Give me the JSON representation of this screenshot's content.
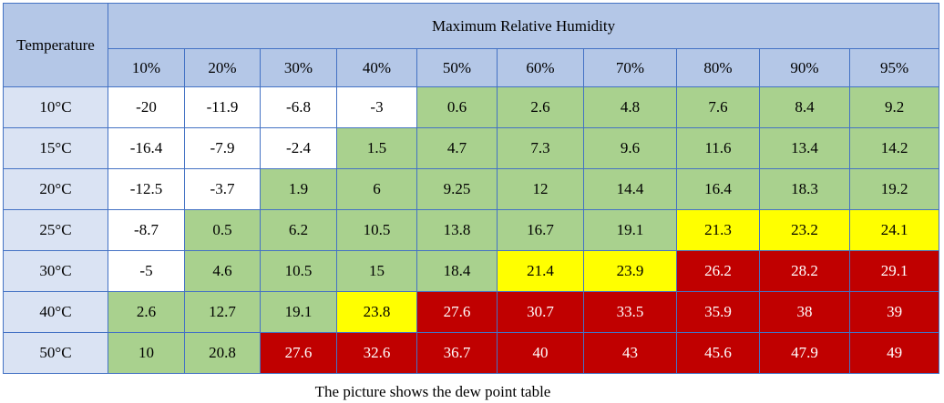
{
  "table": {
    "corner": "Temperature",
    "group_header": "Maximum Relative Humidity",
    "columns": [
      "10%",
      "20%",
      "30%",
      "40%",
      "50%",
      "60%",
      "70%",
      "80%",
      "90%",
      "95%"
    ],
    "row_headers": [
      "10°C",
      "15°C",
      "20°C",
      "25°C",
      "30°C",
      "40°C",
      "50°C"
    ],
    "rows": [
      [
        "-20",
        "-11.9",
        "-6.8",
        "-3",
        "0.6",
        "2.6",
        "4.8",
        "7.6",
        "8.4",
        "9.2"
      ],
      [
        "-16.4",
        "-7.9",
        "-2.4",
        "1.5",
        "4.7",
        "7.3",
        "9.6",
        "11.6",
        "13.4",
        "14.2"
      ],
      [
        "-12.5",
        "-3.7",
        "1.9",
        "6",
        "9.25",
        "12",
        "14.4",
        "16.4",
        "18.3",
        "19.2"
      ],
      [
        "-8.7",
        "0.5",
        "6.2",
        "10.5",
        "13.8",
        "16.7",
        "19.1",
        "21.3",
        "23.2",
        "24.1"
      ],
      [
        "-5",
        "4.6",
        "10.5",
        "15",
        "18.4",
        "21.4",
        "23.9",
        "26.2",
        "28.2",
        "29.1"
      ],
      [
        "2.6",
        "12.7",
        "19.1",
        "23.8",
        "27.6",
        "30.7",
        "33.5",
        "35.9",
        "38",
        "39"
      ],
      [
        "10",
        "20.8",
        "27.6",
        "32.6",
        "36.7",
        "40",
        "43",
        "45.6",
        "47.9",
        "49"
      ]
    ],
    "cell_colors": [
      [
        "#ffffff",
        "#ffffff",
        "#ffffff",
        "#ffffff",
        "#a9d18e",
        "#a9d18e",
        "#a9d18e",
        "#a9d18e",
        "#a9d18e",
        "#a9d18e"
      ],
      [
        "#ffffff",
        "#ffffff",
        "#ffffff",
        "#a9d18e",
        "#a9d18e",
        "#a9d18e",
        "#a9d18e",
        "#a9d18e",
        "#a9d18e",
        "#a9d18e"
      ],
      [
        "#ffffff",
        "#ffffff",
        "#a9d18e",
        "#a9d18e",
        "#a9d18e",
        "#a9d18e",
        "#a9d18e",
        "#a9d18e",
        "#a9d18e",
        "#a9d18e"
      ],
      [
        "#ffffff",
        "#a9d18e",
        "#a9d18e",
        "#a9d18e",
        "#a9d18e",
        "#a9d18e",
        "#a9d18e",
        "#ffff00",
        "#ffff00",
        "#ffff00"
      ],
      [
        "#ffffff",
        "#a9d18e",
        "#a9d18e",
        "#a9d18e",
        "#a9d18e",
        "#ffff00",
        "#ffff00",
        "#c00000",
        "#c00000",
        "#c00000"
      ],
      [
        "#a9d18e",
        "#a9d18e",
        "#a9d18e",
        "#ffff00",
        "#c00000",
        "#c00000",
        "#c00000",
        "#c00000",
        "#c00000",
        "#c00000"
      ],
      [
        "#a9d18e",
        "#a9d18e",
        "#c00000",
        "#c00000",
        "#c00000",
        "#c00000",
        "#c00000",
        "#c00000",
        "#c00000",
        "#c00000"
      ]
    ]
  },
  "caption": "The picture shows the dew point table"
}
